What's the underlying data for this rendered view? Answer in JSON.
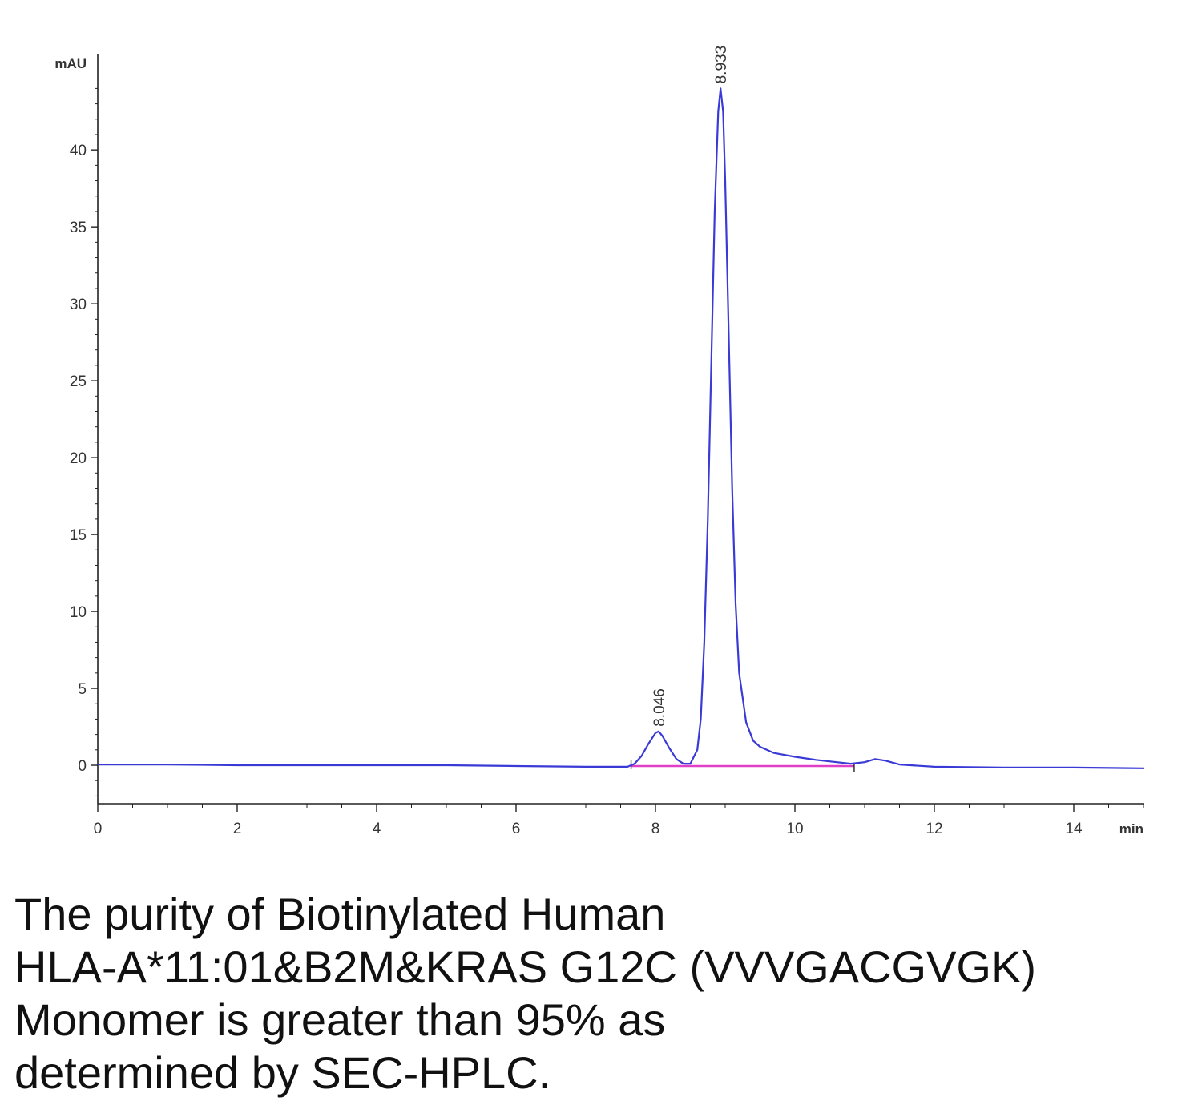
{
  "chart_data": {
    "type": "line",
    "title": "",
    "xlabel": "",
    "ylabel": "",
    "y_unit": "mAU",
    "x_unit": "min",
    "xlim": [
      0,
      15
    ],
    "ylim": [
      -2.5,
      46
    ],
    "x_ticks": [
      0,
      2,
      4,
      6,
      8,
      10,
      12,
      14
    ],
    "y_ticks": [
      0,
      5,
      10,
      15,
      20,
      25,
      30,
      35,
      40
    ],
    "grid": false,
    "series": [
      {
        "x": [
          0,
          1,
          2,
          3,
          4,
          5,
          6,
          7,
          7.6,
          7.7,
          7.8,
          7.9,
          8.0,
          8.046,
          8.1,
          8.2,
          8.3,
          8.4,
          8.5,
          8.6,
          8.65,
          8.7,
          8.75,
          8.8,
          8.85,
          8.9,
          8.933,
          8.97,
          9.0,
          9.05,
          9.1,
          9.15,
          9.2,
          9.3,
          9.4,
          9.5,
          9.7,
          10.0,
          10.3,
          10.6,
          10.8,
          11.0,
          11.15,
          11.3,
          11.5,
          12.0,
          13.0,
          14.0,
          15.0
        ],
        "y": [
          0.05,
          0.05,
          0.0,
          0.0,
          0.0,
          0.0,
          -0.05,
          -0.1,
          -0.1,
          0.1,
          0.6,
          1.4,
          2.1,
          2.2,
          1.9,
          1.1,
          0.4,
          0.1,
          0.1,
          1.0,
          3.0,
          8.0,
          16.0,
          26.0,
          36.0,
          42.5,
          44.0,
          42.5,
          38.0,
          28.0,
          18.0,
          10.5,
          6.0,
          2.8,
          1.6,
          1.2,
          0.8,
          0.55,
          0.35,
          0.2,
          0.1,
          0.2,
          0.4,
          0.3,
          0.05,
          -0.1,
          -0.15,
          -0.15,
          -0.2
        ]
      }
    ],
    "peaks": [
      {
        "label": "8.046",
        "x": 8.046,
        "y": 2.2
      },
      {
        "label": "8.933",
        "x": 8.933,
        "y": 44.0
      }
    ],
    "integration_baseline": {
      "x_start": 7.65,
      "x_end": 10.85
    }
  },
  "caption": {
    "lines": [
      "The purity of Biotinylated Human",
      "HLA-A*11:01&B2M&KRAS G12C (VVVGACGVGK)",
      "Monomer is greater than 95% as",
      "determined by SEC-HPLC."
    ]
  }
}
